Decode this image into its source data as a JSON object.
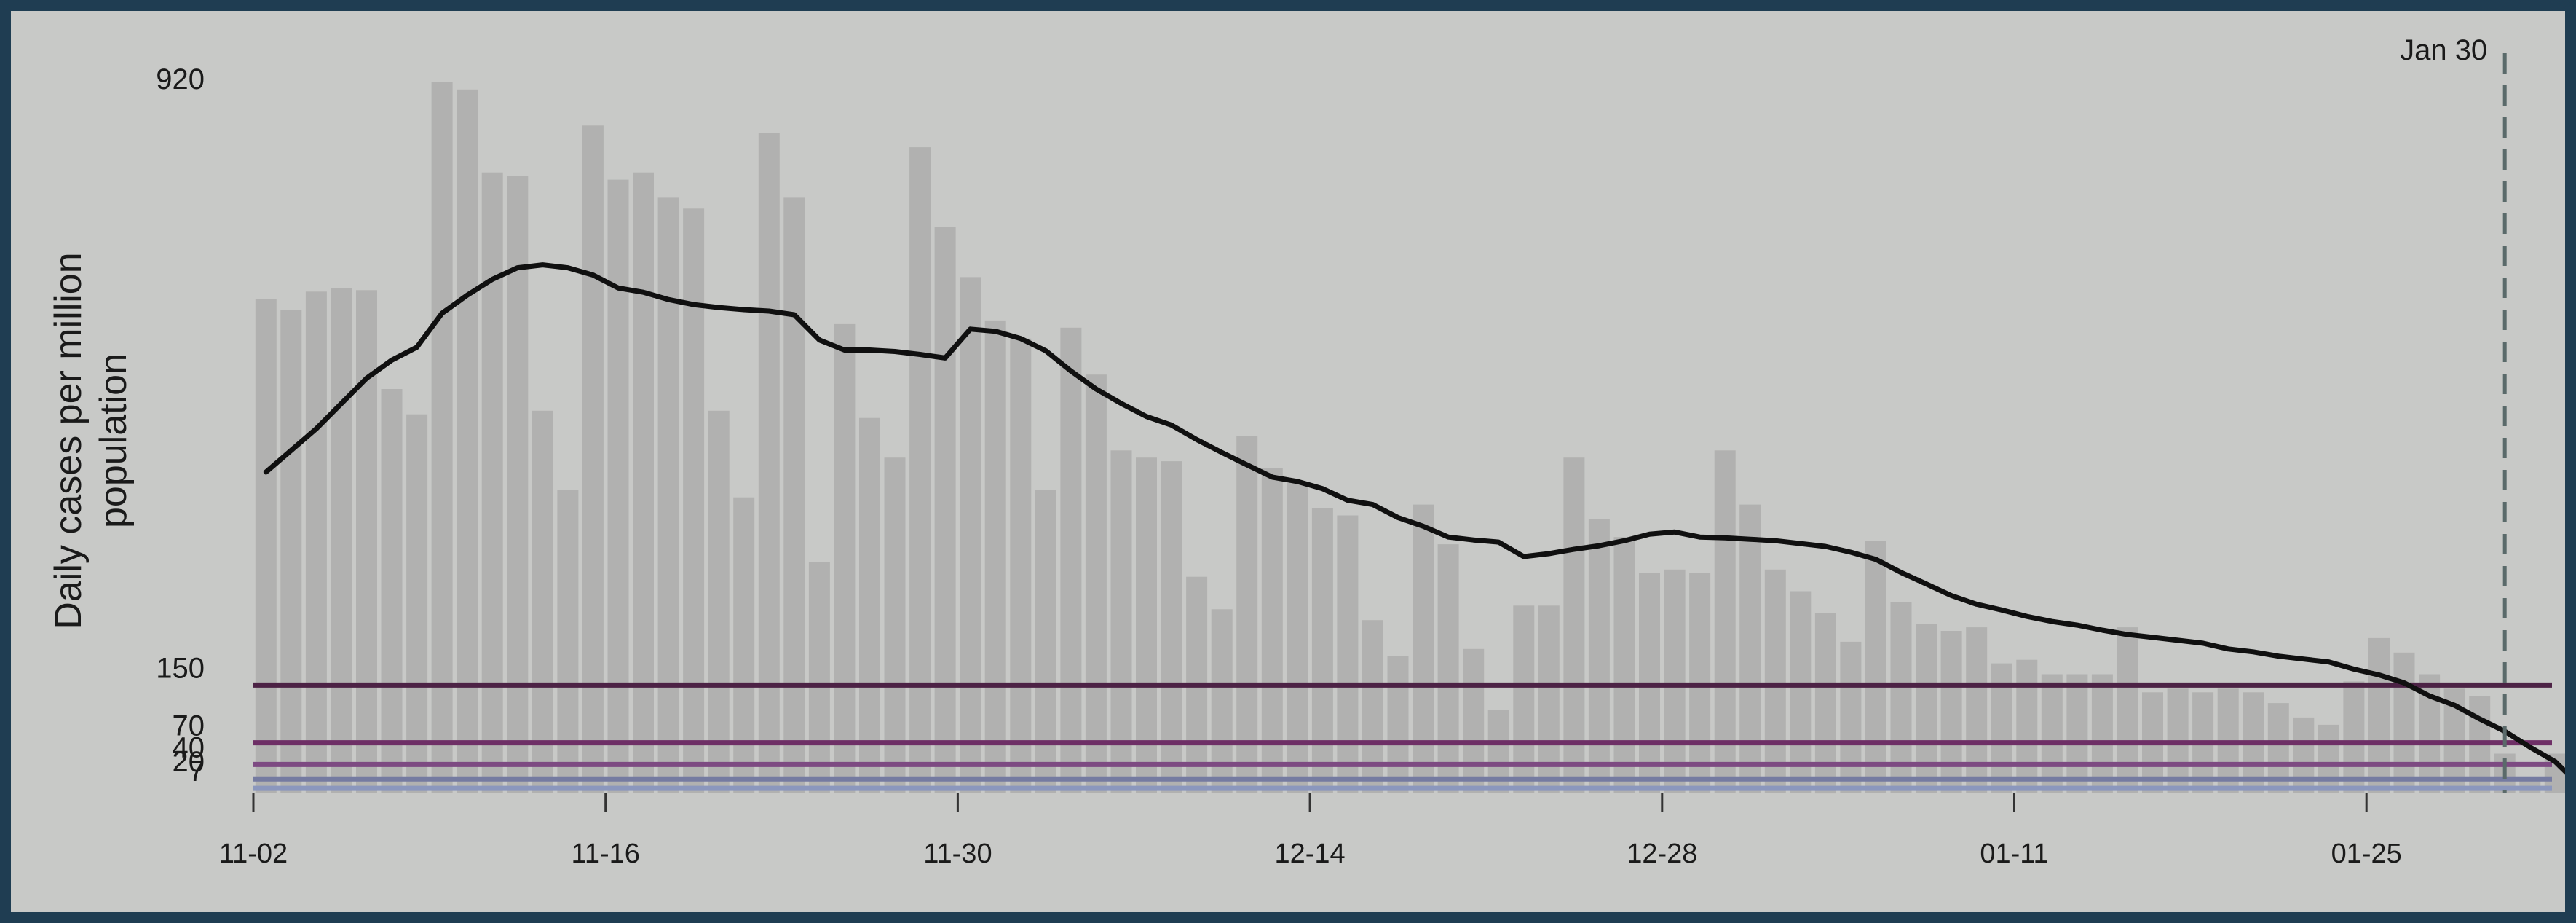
{
  "chart_data": {
    "type": "bar",
    "ylabel": "Daily cases per million population",
    "ylim": [
      0,
      1000
    ],
    "y_tick_labels": [
      "920"
    ],
    "x_tick_labels": [
      "11-02",
      "11-16",
      "11-30",
      "12-14",
      "12-28",
      "01-11",
      "01-25"
    ],
    "dates": [
      "11-02",
      "11-03",
      "11-04",
      "11-05",
      "11-06",
      "11-07",
      "11-08",
      "11-09",
      "11-10",
      "11-11",
      "11-12",
      "11-13",
      "11-14",
      "11-15",
      "11-16",
      "11-17",
      "11-18",
      "11-19",
      "11-20",
      "11-21",
      "11-22",
      "11-23",
      "11-24",
      "11-25",
      "11-26",
      "11-27",
      "11-28",
      "11-29",
      "11-30",
      "12-01",
      "12-02",
      "12-03",
      "12-04",
      "12-05",
      "12-06",
      "12-07",
      "12-08",
      "12-09",
      "12-10",
      "12-11",
      "12-12",
      "12-13",
      "12-14",
      "12-15",
      "12-16",
      "12-17",
      "12-18",
      "12-19",
      "12-20",
      "12-21",
      "12-22",
      "12-23",
      "12-24",
      "12-25",
      "12-26",
      "12-27",
      "12-28",
      "12-29",
      "12-30",
      "12-31",
      "01-01",
      "01-02",
      "01-03",
      "01-04",
      "01-05",
      "01-06",
      "01-07",
      "01-08",
      "01-09",
      "01-10",
      "01-11",
      "01-12",
      "01-13",
      "01-14",
      "01-15",
      "01-16",
      "01-17",
      "01-18",
      "01-19",
      "01-20",
      "01-21",
      "01-22",
      "01-23",
      "01-24",
      "01-25",
      "01-26",
      "01-27",
      "01-28",
      "01-29",
      "01-30",
      "01-31",
      "02-01",
      "02-02"
    ],
    "values": [
      685,
      670,
      695,
      700,
      697,
      560,
      525,
      985,
      975,
      860,
      855,
      530,
      420,
      925,
      850,
      860,
      825,
      810,
      530,
      410,
      915,
      825,
      320,
      650,
      520,
      465,
      895,
      785,
      715,
      655,
      630,
      420,
      645,
      580,
      475,
      465,
      460,
      300,
      255,
      495,
      450,
      430,
      395,
      385,
      240,
      190,
      400,
      345,
      200,
      115,
      260,
      260,
      465,
      380,
      355,
      305,
      310,
      305,
      475,
      400,
      310,
      280,
      250,
      210,
      350,
      265,
      235,
      225,
      230,
      180,
      185,
      165,
      165,
      165,
      230,
      140,
      145,
      140,
      145,
      140,
      125,
      105,
      95,
      155,
      215,
      195,
      165,
      145,
      135,
      55,
      20,
      55,
      0
    ],
    "avg": [
      445,
      475,
      505,
      540,
      575,
      600,
      618,
      665,
      690,
      712,
      728,
      732,
      728,
      718,
      700,
      694,
      684,
      677,
      673,
      670,
      668,
      663,
      628,
      614,
      614,
      612,
      608,
      603,
      643,
      640,
      630,
      613,
      585,
      560,
      540,
      522,
      510,
      490,
      472,
      455,
      438,
      432,
      422,
      406,
      400,
      382,
      370,
      355,
      351,
      348,
      328,
      332,
      338,
      343,
      350,
      359,
      362,
      355,
      354,
      352,
      350,
      346,
      342,
      334,
      324,
      306,
      290,
      274,
      262,
      254,
      245,
      238,
      233,
      226,
      220,
      216,
      212,
      208,
      200,
      196,
      190,
      186,
      182,
      172,
      164,
      153,
      135,
      122,
      103,
      86,
      64,
      44,
      10
    ],
    "reference_lines": [
      {
        "label": "150",
        "value": 150,
        "color": "#4c2245"
      },
      {
        "label": "70",
        "value": 70,
        "color": "#6e2f66"
      },
      {
        "label": "40",
        "value": 40,
        "color": "#7d4a82"
      },
      {
        "label": "20",
        "value": 20,
        "color": "#757ba1"
      },
      {
        "label": "7",
        "value": 7,
        "color": "#8b97bd"
      }
    ],
    "marker": {
      "label": "Jan 30",
      "date": "01-30"
    },
    "colors": {
      "bar": "#b1b1b0",
      "avg_line": "#101010",
      "marker": "#5a6a6a"
    }
  }
}
